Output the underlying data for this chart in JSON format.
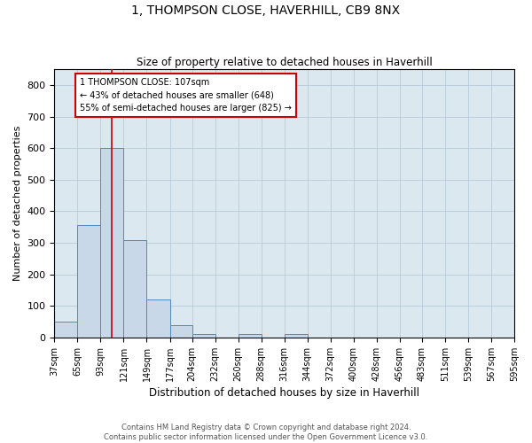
{
  "title": "1, THOMPSON CLOSE, HAVERHILL, CB9 8NX",
  "subtitle": "Size of property relative to detached houses in Haverhill",
  "xlabel": "Distribution of detached houses by size in Haverhill",
  "ylabel": "Number of detached properties",
  "bar_color": "#c8d8e8",
  "bar_edge_color": "#5588bb",
  "grid_color": "#b0c4d4",
  "background_color": "#dce8f0",
  "annotation_line_color": "#cc0000",
  "annotation_box_color": "#cc0000",
  "footer1": "Contains HM Land Registry data © Crown copyright and database right 2024.",
  "footer2": "Contains public sector information licensed under the Open Government Licence v3.0.",
  "property_size": 107,
  "annotation_line1": "1 THOMPSON CLOSE: 107sqm",
  "annotation_line2": "← 43% of detached houses are smaller (648)",
  "annotation_line3": "55% of semi-detached houses are larger (825) →",
  "bin_edges": [
    37,
    65,
    93,
    121,
    149,
    177,
    204,
    232,
    260,
    288,
    316,
    344,
    372,
    400,
    428,
    456,
    483,
    511,
    539,
    567,
    595
  ],
  "bar_heights": [
    50,
    355,
    600,
    310,
    120,
    40,
    10,
    0,
    10,
    0,
    10,
    0,
    0,
    0,
    0,
    0,
    0,
    0,
    0,
    0
  ],
  "ylim": [
    0,
    850
  ],
  "yticks": [
    0,
    100,
    200,
    300,
    400,
    500,
    600,
    700,
    800
  ],
  "figsize": [
    6.0,
    5.0
  ],
  "dpi": 100
}
